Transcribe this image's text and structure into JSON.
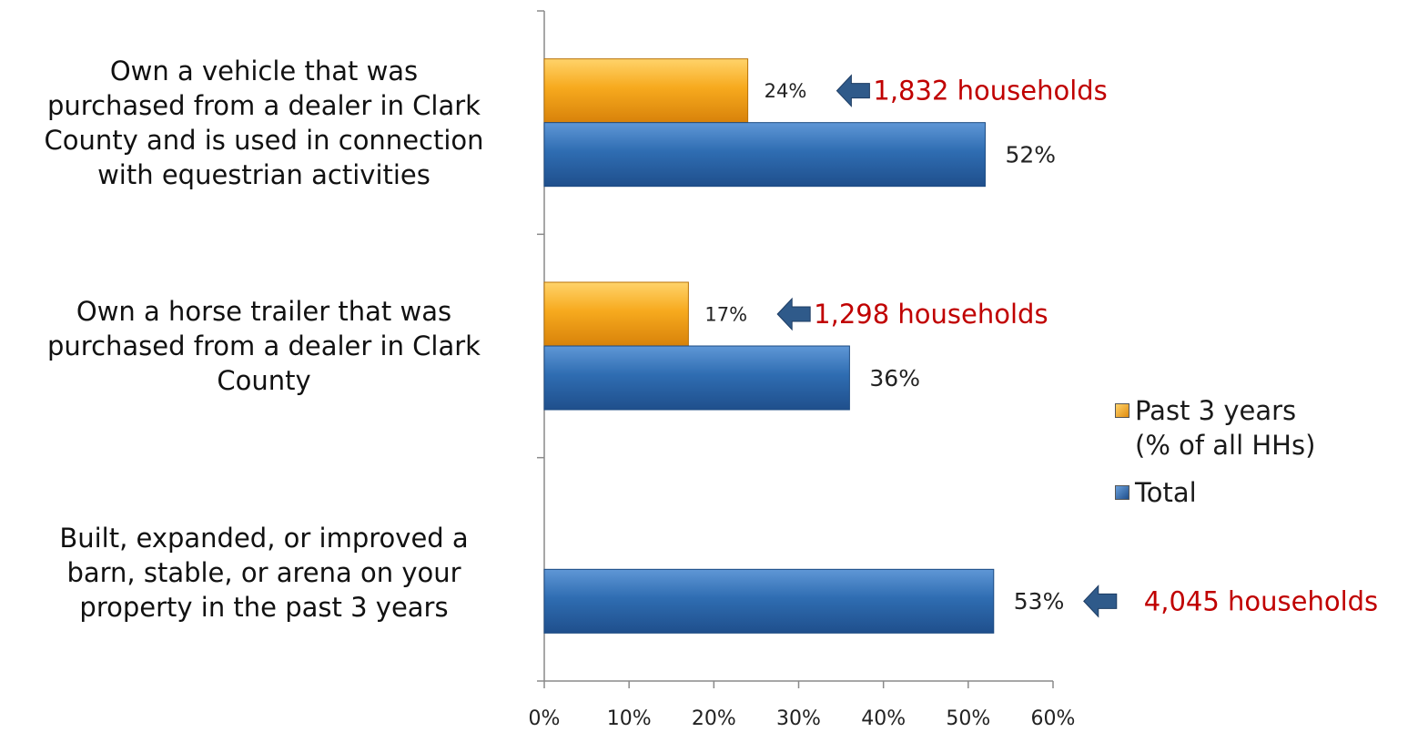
{
  "chart_data": {
    "type": "bar",
    "orientation": "horizontal",
    "categories": [
      "Own a vehicle that was purchased from a dealer in Clark County and is used in connection with equestrian activities",
      "Own a horse trailer that was purchased from a dealer in Clark County",
      "Built, expanded, or improved a barn, stable, or arena on your property in the past 3 years"
    ],
    "category_lines": [
      [
        "Own a vehicle that was",
        "purchased from a dealer in Clark",
        "County and is used in connection",
        "with equestrian activities"
      ],
      [
        "Own a horse trailer that was",
        "purchased from a dealer in Clark",
        "County"
      ],
      [
        "Built, expanded, or improved a",
        "barn, stable, or arena on your",
        "property in the past 3 years"
      ]
    ],
    "series": [
      {
        "name": "Past 3 years\n(% of all HHs)",
        "color": "#f5a21b",
        "values": [
          24,
          17,
          null
        ],
        "labels": [
          "24%",
          "17%",
          ""
        ]
      },
      {
        "name": "Total",
        "color": "#2f6db2",
        "values": [
          52,
          36,
          53
        ],
        "labels": [
          "52%",
          "36%",
          "53%"
        ]
      }
    ],
    "annotations": [
      {
        "category": 0,
        "series": 0,
        "text": "1,832 households"
      },
      {
        "category": 1,
        "series": 0,
        "text": "1,298 households"
      },
      {
        "category": 2,
        "series": 1,
        "text": "4,045 households"
      }
    ],
    "annotation_color": "#c00000",
    "arrow_color": "#2f5a8a",
    "xlim": [
      0,
      60
    ],
    "xticks": [
      0,
      10,
      20,
      30,
      40,
      50,
      60
    ],
    "xtick_labels": [
      "0%",
      "10%",
      "20%",
      "30%",
      "40%",
      "50%",
      "60%"
    ],
    "grid": false,
    "legend": "right"
  }
}
